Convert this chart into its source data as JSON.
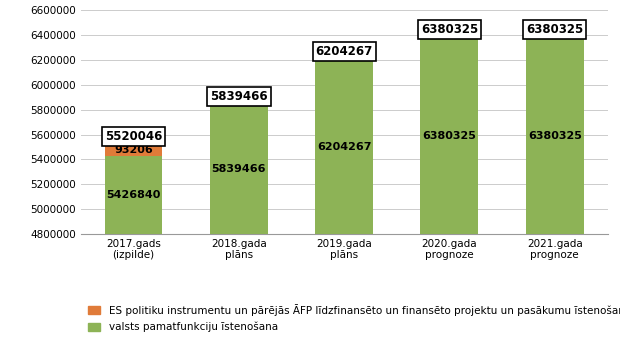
{
  "categories": [
    "2017.gads\n(izpilde)",
    "2018.gada\nplāns",
    "2019.gada\nplāns",
    "2020.gada\nprognoze",
    "2021.gada\nprognoze"
  ],
  "green_values": [
    5426840,
    5839466,
    6204267,
    6380325,
    6380325
  ],
  "orange_values": [
    93206,
    0,
    0,
    0,
    0
  ],
  "totals": [
    5520046,
    5839466,
    6204267,
    6380325,
    6380325
  ],
  "green_color": "#8db356",
  "orange_color": "#e07b39",
  "ylim": [
    4800000,
    6600000
  ],
  "yticks": [
    4800000,
    5000000,
    5200000,
    5400000,
    5600000,
    5800000,
    6000000,
    6200000,
    6400000,
    6600000
  ],
  "legend_orange": "ES politiku instrumentu un pārējās ĀFP līdzfinansēto un finansēto projektu un pasākumu īstenošana",
  "legend_green": "valsts pamatfunkciju īstenošana",
  "background_color": "#ffffff",
  "grid_color": "#cccccc",
  "bar_width": 0.55,
  "inside_label_fontsize": 8.0,
  "total_label_fontsize": 8.5,
  "tick_fontsize": 7.5,
  "legend_fontsize": 7.5,
  "ymin": 4800000
}
